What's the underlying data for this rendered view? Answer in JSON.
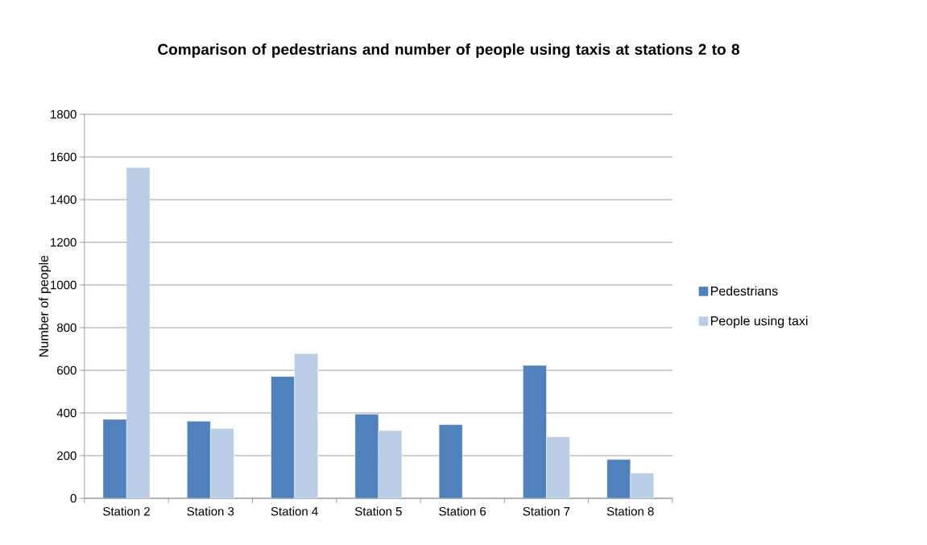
{
  "chart_data": {
    "type": "bar",
    "title": "Comparison of pedestrians and number of people using taxis at stations 2 to 8",
    "ylabel": "Number of people",
    "categories": [
      "Station 2",
      "Station 3",
      "Station 4",
      "Station 5",
      "Station 6",
      "Station 7",
      "Station 8"
    ],
    "series": [
      {
        "name": "Pedestrians",
        "color": "#4f81bd",
        "values": [
          370,
          361,
          571,
          394,
          345,
          623,
          182
        ]
      },
      {
        "name": "People using taxi",
        "color": "#b9cde5",
        "values": [
          1550,
          327,
          678,
          317,
          null,
          288,
          118
        ]
      }
    ],
    "ylim": [
      0,
      1800
    ],
    "yticks": [
      0,
      200,
      400,
      600,
      800,
      1000,
      1200,
      1400,
      1600,
      1800
    ],
    "grid": "y",
    "legend": "right"
  }
}
